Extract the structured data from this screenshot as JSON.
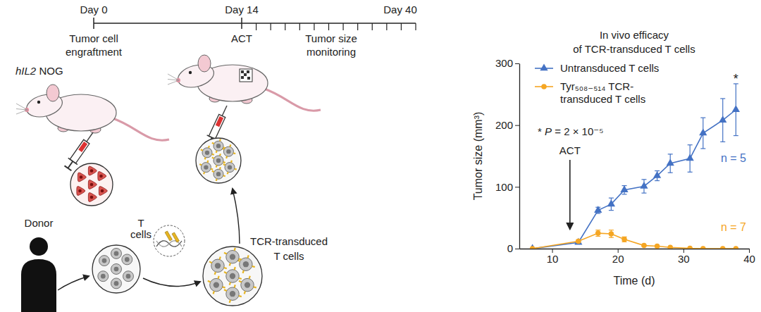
{
  "diagram": {
    "timeline_labels": [
      "Day 0",
      "Day 14",
      "Day 40"
    ],
    "timeline_events": [
      "Tumor cell engraftment",
      "ACT",
      "Tumor size monitoring"
    ],
    "mouse_strain": {
      "gene": "hIL2",
      "strain": "NOG"
    },
    "donor": "Donor",
    "t_cells": "T cells",
    "transduced_cells": "TCR-transduced T cells"
  },
  "chart_data": {
    "type": "line",
    "title": "In vivo efficacy of TCR-transduced T cells",
    "x_label": "Time (d)",
    "y_label": "Tumor size (mm³)",
    "x": [
      7,
      14,
      17,
      19,
      21,
      24,
      26,
      28,
      31,
      33,
      36,
      38
    ],
    "xlim": [
      5,
      40
    ],
    "xticks": [
      10,
      20,
      30,
      40
    ],
    "ylim": [
      0,
      300
    ],
    "yticks": [
      0,
      100,
      200,
      300
    ],
    "grid": false,
    "legend": "top-left",
    "series": [
      {
        "name": "Untransduced T cells",
        "color": "#4472c4",
        "marker": "triangle",
        "values": [
          0,
          10,
          62,
          72,
          95,
          101,
          118,
          138,
          146,
          187,
          208,
          225
        ],
        "error": [
          0,
          2,
          5,
          10,
          7,
          11,
          8,
          15,
          22,
          25,
          35,
          42
        ],
        "n_label": "n = 5"
      },
      {
        "name": "Tyr₅₀₈₋₅₁₄ TCR-transduced T cells",
        "color": "#f5a623",
        "marker": "circle",
        "values": [
          0,
          12,
          25,
          24,
          15,
          5,
          4,
          2,
          0.5,
          0,
          0,
          0
        ],
        "error": [
          0,
          2,
          5,
          6,
          4,
          1,
          1,
          0.5,
          0.3,
          0,
          0,
          0
        ],
        "n_label": "n = 7"
      }
    ],
    "annotations": [
      {
        "text": "ACT",
        "x": 14,
        "y": 25
      },
      {
        "text": "*",
        "x": 38,
        "y": 268
      }
    ],
    "p_value_label": "* P = 2 × 10⁻⁵"
  }
}
